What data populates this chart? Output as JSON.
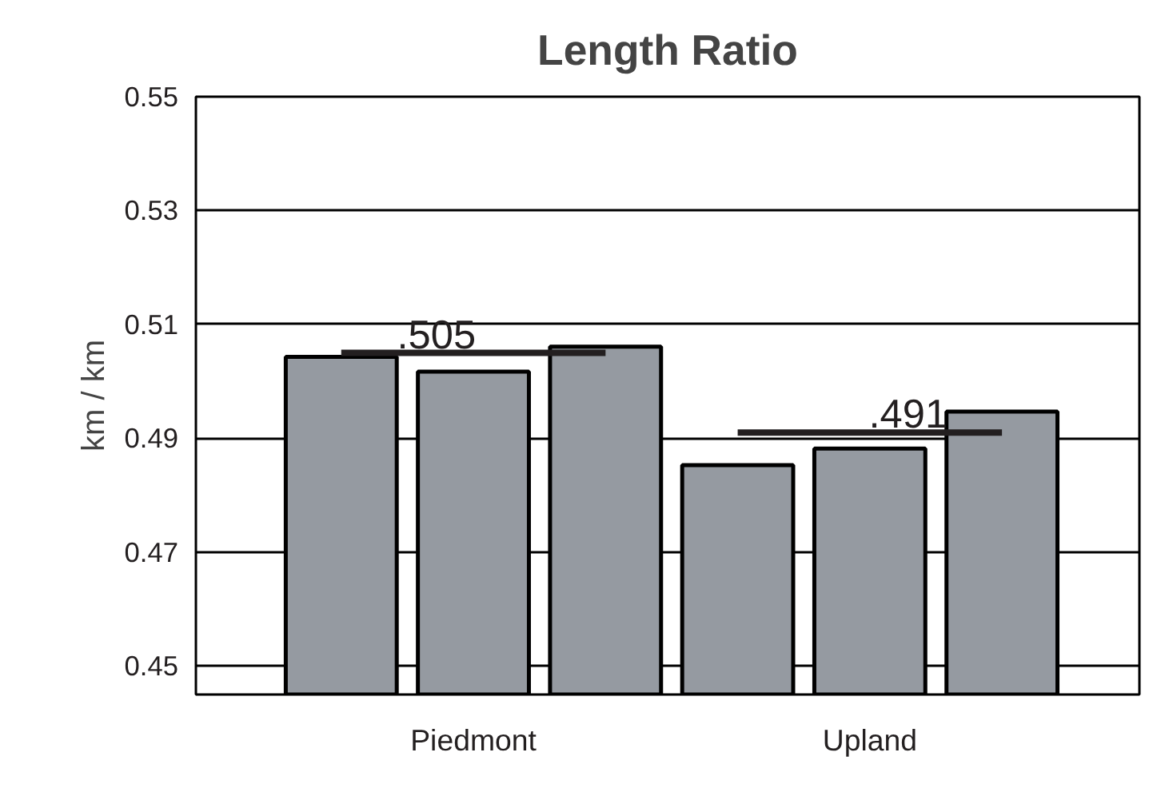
{
  "chart_data": {
    "type": "bar",
    "title": "Length Ratio",
    "ylabel": "km / km",
    "categories": [
      null,
      "Piedmont",
      null,
      null,
      "Upland",
      null
    ],
    "ylim": [
      0.445,
      0.55
    ],
    "yticks": [
      0.45,
      0.47,
      0.49,
      0.51,
      0.53,
      0.55
    ],
    "grid": "y",
    "series": [
      {
        "color": "#959aa1",
        "values": [
          0.5043,
          0.5017,
          0.5061,
          0.4853,
          0.4882,
          0.4947
        ]
      },
      {
        "type": "line",
        "color": "#231f20",
        "values": [
          0.505,
          0.505,
          0.505,
          null,
          null,
          null
        ]
      },
      {
        "type": "line",
        "color": "#231f20",
        "values": [
          null,
          null,
          null,
          0.491,
          0.491,
          0.491
        ]
      }
    ],
    "annotations": [
      ".505",
      ".491"
    ]
  }
}
